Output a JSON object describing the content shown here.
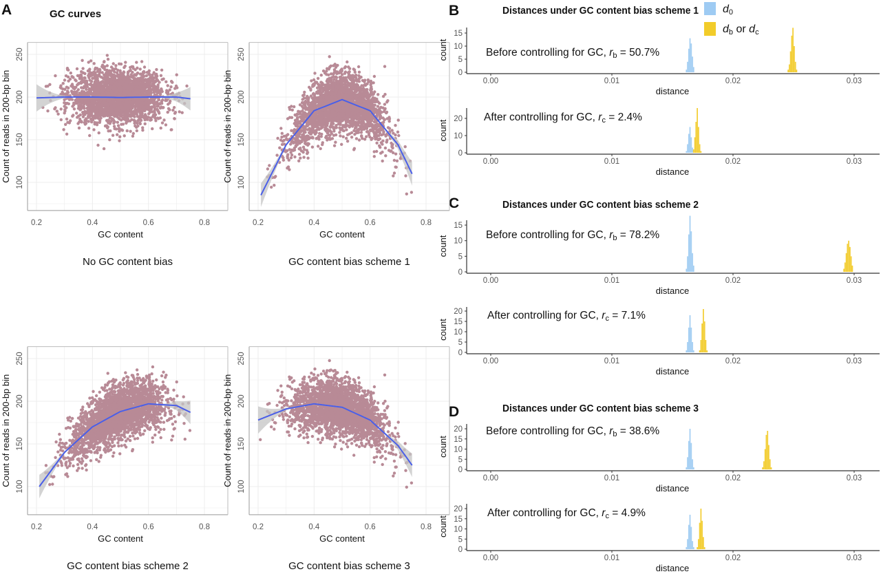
{
  "figure": {
    "panel_a_letter": "A",
    "panel_a_title": "GC curves",
    "panel_b_letter": "B",
    "panel_c_letter": "C",
    "panel_d_letter": "D",
    "legend": {
      "d0": {
        "var": "d",
        "sub": "0",
        "color": "#9ecbf3"
      },
      "dbdc": {
        "var1": "d",
        "sub1": "b",
        "mid": " or ",
        "var2": "d",
        "sub2": "c",
        "color": "#f2cc2a"
      }
    },
    "colors": {
      "points": "#b88a96",
      "fit_line": "#4a5ee8",
      "ci_band": "#c4c4c4"
    }
  },
  "chart_data": [
    {
      "type": "scatter",
      "caption": "No GC content bias",
      "xlabel": "GC content",
      "ylabel": "Count of reads in 200-bp bin",
      "xlim": [
        0.18,
        0.83
      ],
      "ylim": [
        67,
        264
      ],
      "xticks": [
        "0.2",
        "0.4",
        "0.6",
        "0.8"
      ],
      "yticks": [
        "100",
        "150",
        "200",
        "250"
      ],
      "grid": true,
      "fit": {
        "x": [
          0.2,
          0.3,
          0.4,
          0.5,
          0.6,
          0.7,
          0.75
        ],
        "y": [
          199,
          200,
          200,
          199.5,
          200,
          200,
          198
        ]
      },
      "spread": 15
    },
    {
      "type": "scatter",
      "caption": "GC content bias scheme 1",
      "xlabel": "GC content",
      "ylabel": "Count of reads in 200-bp bin",
      "xlim": [
        0.18,
        0.83
      ],
      "ylim": [
        67,
        264
      ],
      "xticks": [
        "0.2",
        "0.4",
        "0.6",
        "0.8"
      ],
      "yticks": [
        "100",
        "150",
        "200",
        "250"
      ],
      "grid": true,
      "fit": {
        "x": [
          0.21,
          0.3,
          0.4,
          0.5,
          0.6,
          0.7,
          0.75
        ],
        "y": [
          85,
          144,
          184,
          197,
          184,
          144,
          110
        ]
      },
      "spread": 17
    },
    {
      "type": "scatter",
      "caption": "GC content bias scheme 2",
      "xlabel": "GC content",
      "ylabel": "Count of reads in 200-bp bin",
      "xlim": [
        0.18,
        0.83
      ],
      "ylim": [
        67,
        264
      ],
      "xticks": [
        "0.2",
        "0.4",
        "0.6",
        "0.8"
      ],
      "yticks": [
        "100",
        "150",
        "200",
        "250"
      ],
      "grid": true,
      "fit": {
        "x": [
          0.21,
          0.3,
          0.4,
          0.5,
          0.6,
          0.7,
          0.75
        ],
        "y": [
          100,
          140,
          170,
          188,
          197,
          195,
          187
        ]
      },
      "spread": 16
    },
    {
      "type": "scatter",
      "caption": "GC content bias scheme 3",
      "xlabel": "GC content",
      "ylabel": "Count of reads in 200-bp bin",
      "xlim": [
        0.18,
        0.83
      ],
      "ylim": [
        67,
        264
      ],
      "xticks": [
        "0.2",
        "0.4",
        "0.6",
        "0.8"
      ],
      "yticks": [
        "100",
        "150",
        "200",
        "250"
      ],
      "grid": true,
      "fit": {
        "x": [
          0.2,
          0.3,
          0.4,
          0.5,
          0.6,
          0.7,
          0.75
        ],
        "y": [
          178,
          191,
          197,
          193,
          178,
          148,
          125
        ]
      },
      "spread": 16
    },
    {
      "type": "bar",
      "title": "Distances under GC content bias scheme 1",
      "annotation": {
        "text": "Before controlling for GC, ",
        "var": "r",
        "sub": "b",
        "value": " = 50.7%"
      },
      "xlabel": "distance",
      "ylabel": "count",
      "xticks": [
        "0.00",
        "0.01",
        "0.02",
        "0.03"
      ],
      "yticks": [
        "0",
        "5",
        "10",
        "15"
      ],
      "bin_width": 0.0001,
      "series": [
        {
          "key": "d0",
          "start": 0.0161,
          "counts": [
            1,
            4,
            9,
            13,
            11,
            6,
            2
          ]
        },
        {
          "key": "db",
          "start": 0.0245,
          "counts": [
            1,
            3,
            8,
            14,
            17,
            10,
            4,
            1
          ]
        }
      ]
    },
    {
      "type": "bar",
      "title": "",
      "annotation": {
        "text": "After controlling for GC, ",
        "var": "r",
        "sub": "c",
        "value": " = 2.4%"
      },
      "xlabel": "distance",
      "ylabel": "count",
      "xticks": [
        "0.00",
        "0.01",
        "0.02",
        "0.03"
      ],
      "yticks": [
        "0",
        "10",
        "20"
      ],
      "bin_width": 0.0001,
      "series": [
        {
          "key": "d0",
          "start": 0.0161,
          "counts": [
            1,
            5,
            11,
            15,
            9,
            3
          ]
        },
        {
          "key": "dc",
          "start": 0.0167,
          "counts": [
            2,
            9,
            18,
            26,
            15,
            5,
            1
          ]
        }
      ]
    },
    {
      "type": "bar",
      "title": "Distances under GC content bias scheme 2",
      "annotation": {
        "text": "Before controlling for GC, ",
        "var": "r",
        "sub": "b",
        "value": " = 78.2%"
      },
      "xlabel": "distance",
      "ylabel": "count",
      "xticks": [
        "0.00",
        "0.01",
        "0.02",
        "0.03"
      ],
      "yticks": [
        "0",
        "5",
        "10",
        "15"
      ],
      "bin_width": 0.0001,
      "series": [
        {
          "key": "d0",
          "start": 0.0161,
          "counts": [
            1,
            5,
            12,
            18,
            13,
            6,
            2
          ]
        },
        {
          "key": "db",
          "start": 0.0291,
          "counts": [
            1,
            3,
            6,
            9,
            10,
            8,
            5,
            2
          ]
        }
      ]
    },
    {
      "type": "bar",
      "title": "",
      "annotation": {
        "text": "After controlling for GC, ",
        "var": "r",
        "sub": "c",
        "value": " = 7.1%"
      },
      "xlabel": "distance",
      "ylabel": "count",
      "xticks": [
        "0.00",
        "0.01",
        "0.02",
        "0.03"
      ],
      "yticks": [
        "0",
        "5",
        "10",
        "15",
        "20"
      ],
      "bin_width": 0.0001,
      "series": [
        {
          "key": "d0",
          "start": 0.0161,
          "counts": [
            1,
            5,
            12,
            18,
            12,
            5,
            1
          ]
        },
        {
          "key": "dc",
          "start": 0.0172,
          "counts": [
            1,
            6,
            14,
            21,
            15,
            6,
            1
          ]
        }
      ]
    },
    {
      "type": "bar",
      "title": "Distances under GC content bias scheme 3",
      "annotation": {
        "text": "Before controlling for GC, ",
        "var": "r",
        "sub": "b",
        "value": " = 38.6%"
      },
      "xlabel": "distance",
      "ylabel": "count",
      "xticks": [
        "0.00",
        "0.01",
        "0.02",
        "0.03"
      ],
      "yticks": [
        "0",
        "5",
        "10",
        "15",
        "20"
      ],
      "bin_width": 0.0001,
      "series": [
        {
          "key": "d0",
          "start": 0.0161,
          "counts": [
            1,
            6,
            14,
            20,
            13,
            5,
            1
          ]
        },
        {
          "key": "db",
          "start": 0.0224,
          "counts": [
            1,
            4,
            10,
            17,
            19,
            12,
            5,
            1
          ]
        }
      ]
    },
    {
      "type": "bar",
      "title": "",
      "annotation": {
        "text": "After controlling for GC, ",
        "var": "r",
        "sub": "c",
        "value": " = 4.9%"
      },
      "xlabel": "distance",
      "ylabel": "count",
      "xticks": [
        "0.00",
        "0.01",
        "0.02",
        "0.03"
      ],
      "yticks": [
        "0",
        "5",
        "10",
        "15",
        "20"
      ],
      "bin_width": 0.0001,
      "series": [
        {
          "key": "d0",
          "start": 0.0161,
          "counts": [
            1,
            5,
            12,
            17,
            11,
            4,
            1
          ]
        },
        {
          "key": "dc",
          "start": 0.017,
          "counts": [
            1,
            5,
            13,
            20,
            14,
            6,
            1
          ]
        }
      ]
    }
  ]
}
